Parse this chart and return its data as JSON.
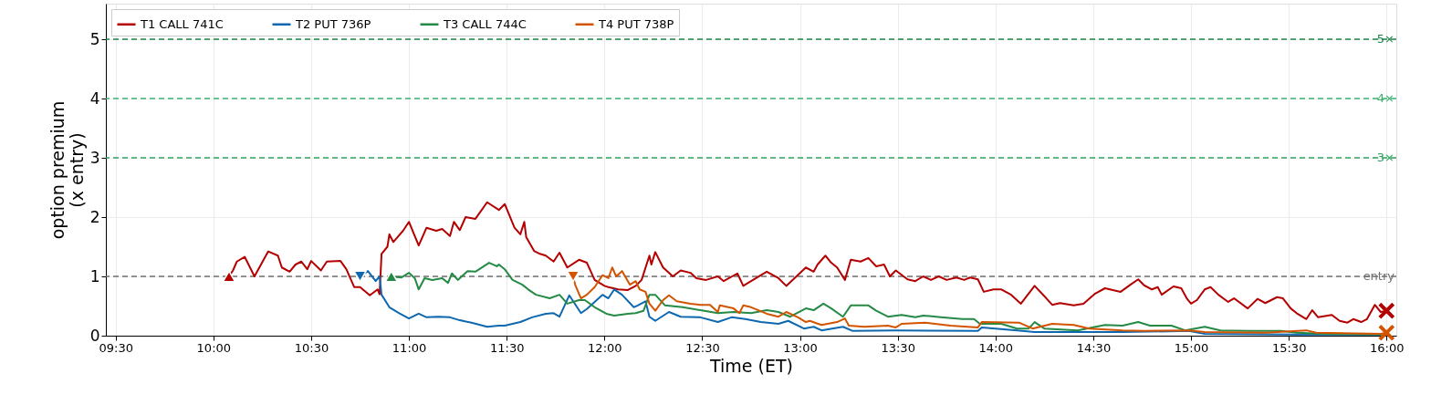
{
  "chart_data": {
    "type": "line",
    "xlabel": "Time (ET)",
    "ylabel": "option premium\n(x entry)",
    "xlim": [
      9.45,
      16.05
    ],
    "ylim": [
      0,
      5.6
    ],
    "xticks": [
      {
        "value": 9.5,
        "label": "09:30"
      },
      {
        "value": 10,
        "label": "10:00"
      },
      {
        "value": 10.5,
        "label": "10:30"
      },
      {
        "value": 11,
        "label": "11:00"
      },
      {
        "value": 11.5,
        "label": "11:30"
      },
      {
        "value": 12,
        "label": "12:00"
      },
      {
        "value": 12.5,
        "label": "12:30"
      },
      {
        "value": 13,
        "label": "13:00"
      },
      {
        "value": 13.5,
        "label": "13:30"
      },
      {
        "value": 14,
        "label": "14:00"
      },
      {
        "value": 14.5,
        "label": "14:30"
      },
      {
        "value": 15,
        "label": "15:00"
      },
      {
        "value": 15.5,
        "label": "15:30"
      },
      {
        "value": 16,
        "label": "16:00"
      }
    ],
    "yticks": [
      0,
      1,
      2,
      3,
      4,
      5
    ],
    "grid": true,
    "legend": "top left",
    "line_style": "solid",
    "marker": "none",
    "ref_lines": [
      {
        "axis": "y",
        "value": 1,
        "label": "entry",
        "color": "#707070",
        "line_style": "dashed"
      },
      {
        "axis": "y",
        "value": 3,
        "label": "3×",
        "color": "#2ca25f",
        "line_style": "dashed"
      },
      {
        "axis": "y",
        "value": 4,
        "label": "4×",
        "color": "#3cb371",
        "line_style": "dashed"
      },
      {
        "axis": "y",
        "value": 5,
        "label": "5×",
        "color": "#1e8449",
        "line_style": "dashed"
      }
    ],
    "series": [
      {
        "name": "T1 CALL 741C",
        "color": "#b40000",
        "x": [
          10.08,
          10.1,
          10.12,
          10.16,
          10.21,
          10.28,
          10.33,
          10.35,
          10.39,
          10.42,
          10.45,
          10.48,
          10.5,
          10.55,
          10.58,
          10.65,
          10.68,
          10.72,
          10.75,
          10.8,
          10.84,
          10.85,
          10.86,
          10.89,
          10.9,
          10.92,
          10.97,
          11.0,
          11.05,
          11.09,
          11.14,
          11.17,
          11.21,
          11.23,
          11.26,
          11.29,
          11.34,
          11.4,
          11.46,
          11.49,
          11.54,
          11.57,
          11.59,
          11.6,
          11.64,
          11.67,
          11.7,
          11.74,
          11.77,
          11.81,
          11.87,
          11.91,
          11.95,
          12.0,
          12.02,
          12.07,
          12.12,
          12.16,
          12.19,
          12.23,
          12.24,
          12.26,
          12.3,
          12.35,
          12.39,
          12.44,
          12.47,
          12.52,
          12.58,
          12.61,
          12.68,
          12.71,
          12.75,
          12.83,
          12.89,
          12.93,
          13.03,
          13.07,
          13.09,
          13.13,
          13.16,
          13.19,
          13.23,
          13.26,
          13.31,
          13.35,
          13.39,
          13.43,
          13.46,
          13.49,
          13.55,
          13.59,
          13.63,
          13.67,
          13.71,
          13.75,
          13.8,
          13.84,
          13.87,
          13.91,
          13.94,
          13.99,
          14.03,
          14.08,
          14.13,
          14.2,
          14.26,
          14.29,
          14.33,
          14.4,
          14.45,
          14.51,
          14.56,
          14.64,
          14.69,
          14.73,
          14.76,
          14.8,
          14.83,
          14.85,
          14.91,
          14.95,
          14.98,
          15.0,
          15.03,
          15.07,
          15.1,
          15.14,
          15.19,
          15.22,
          15.29,
          15.34,
          15.38,
          15.44,
          15.47,
          15.51,
          15.54,
          15.59,
          15.62,
          15.65,
          15.72,
          15.76,
          15.8,
          15.83,
          15.87,
          15.9,
          15.94,
          15.97,
          16.0
        ],
        "values": [
          1.0,
          1.1,
          1.25,
          1.33,
          1.0,
          1.42,
          1.35,
          1.15,
          1.08,
          1.2,
          1.25,
          1.12,
          1.26,
          1.1,
          1.25,
          1.26,
          1.12,
          0.82,
          0.82,
          0.68,
          0.78,
          0.7,
          1.38,
          1.5,
          1.71,
          1.58,
          1.77,
          1.92,
          1.52,
          1.82,
          1.77,
          1.8,
          1.68,
          1.92,
          1.78,
          2.0,
          1.97,
          2.25,
          2.12,
          2.22,
          1.82,
          1.71,
          1.92,
          1.66,
          1.43,
          1.38,
          1.35,
          1.25,
          1.4,
          1.15,
          1.28,
          1.23,
          0.94,
          0.84,
          0.82,
          0.78,
          0.77,
          0.84,
          0.94,
          1.35,
          1.2,
          1.41,
          1.15,
          1.0,
          1.1,
          1.06,
          0.97,
          0.94,
          1.0,
          0.92,
          1.05,
          0.84,
          0.92,
          1.08,
          0.97,
          0.84,
          1.15,
          1.08,
          1.2,
          1.35,
          1.23,
          1.15,
          0.94,
          1.28,
          1.25,
          1.31,
          1.17,
          1.2,
          1.0,
          1.1,
          0.95,
          0.92,
          1.0,
          0.94,
          1.0,
          0.94,
          0.98,
          0.94,
          0.98,
          0.95,
          0.74,
          0.78,
          0.78,
          0.69,
          0.54,
          0.84,
          0.63,
          0.52,
          0.55,
          0.51,
          0.54,
          0.71,
          0.8,
          0.74,
          0.86,
          0.95,
          0.85,
          0.78,
          0.82,
          0.69,
          0.83,
          0.8,
          0.62,
          0.54,
          0.6,
          0.78,
          0.82,
          0.69,
          0.57,
          0.63,
          0.46,
          0.62,
          0.55,
          0.65,
          0.63,
          0.46,
          0.38,
          0.28,
          0.43,
          0.31,
          0.35,
          0.25,
          0.22,
          0.28,
          0.23,
          0.28,
          0.52,
          0.4,
          0.42
        ]
      },
      {
        "name": "T2 PUT 736P",
        "color": "#0e68b0",
        "x": [
          10.75,
          10.79,
          10.83,
          10.85,
          10.86,
          10.9,
          10.95,
          11.0,
          11.05,
          11.09,
          11.15,
          11.21,
          11.26,
          11.32,
          11.4,
          11.46,
          11.49,
          11.57,
          11.63,
          11.7,
          11.74,
          11.77,
          11.82,
          11.88,
          11.91,
          11.99,
          12.02,
          12.05,
          12.09,
          12.15,
          12.17,
          12.21,
          12.23,
          12.26,
          12.33,
          12.39,
          12.49,
          12.58,
          12.65,
          12.72,
          12.8,
          12.89,
          12.94,
          13.02,
          13.07,
          13.11,
          13.22,
          13.27,
          13.49,
          13.91,
          13.93,
          14.11,
          14.2,
          14.65,
          14.99,
          15.07,
          15.54,
          16.0
        ],
        "values": [
          1.0,
          1.09,
          0.92,
          1.0,
          0.69,
          0.48,
          0.38,
          0.29,
          0.37,
          0.31,
          0.32,
          0.31,
          0.26,
          0.22,
          0.15,
          0.17,
          0.17,
          0.23,
          0.31,
          0.37,
          0.38,
          0.32,
          0.68,
          0.38,
          0.45,
          0.69,
          0.63,
          0.78,
          0.69,
          0.48,
          0.51,
          0.58,
          0.32,
          0.25,
          0.4,
          0.32,
          0.31,
          0.23,
          0.31,
          0.28,
          0.23,
          0.2,
          0.25,
          0.12,
          0.15,
          0.09,
          0.15,
          0.08,
          0.09,
          0.08,
          0.14,
          0.09,
          0.06,
          0.06,
          0.08,
          0.03,
          0.02,
          0.02
        ]
      },
      {
        "name": "T3 CALL 744C",
        "color": "#258a45",
        "x": [
          10.91,
          10.96,
          11.0,
          11.03,
          11.05,
          11.08,
          11.12,
          11.17,
          11.2,
          11.22,
          11.25,
          11.3,
          11.34,
          11.41,
          11.45,
          11.46,
          11.49,
          11.53,
          11.58,
          11.61,
          11.65,
          11.72,
          11.77,
          11.81,
          11.87,
          11.9,
          11.95,
          12.01,
          12.05,
          12.12,
          12.16,
          12.2,
          12.23,
          12.26,
          12.31,
          12.4,
          12.49,
          12.58,
          12.66,
          12.75,
          12.83,
          12.89,
          12.95,
          13.03,
          13.07,
          13.12,
          13.16,
          13.22,
          13.26,
          13.35,
          13.39,
          13.45,
          13.52,
          13.59,
          13.63,
          13.72,
          13.83,
          13.89,
          13.92,
          14.03,
          14.11,
          14.17,
          14.2,
          14.25,
          14.42,
          14.56,
          14.65,
          14.73,
          14.79,
          14.9,
          14.97,
          15.07,
          15.15,
          15.3,
          15.46,
          15.54,
          15.69,
          16.0
        ],
        "values": [
          1.0,
          0.98,
          1.06,
          0.97,
          0.78,
          0.97,
          0.94,
          0.97,
          0.89,
          1.05,
          0.94,
          1.09,
          1.08,
          1.23,
          1.17,
          1.2,
          1.12,
          0.94,
          0.86,
          0.78,
          0.69,
          0.63,
          0.69,
          0.54,
          0.6,
          0.6,
          0.48,
          0.37,
          0.34,
          0.37,
          0.38,
          0.42,
          0.69,
          0.69,
          0.51,
          0.48,
          0.43,
          0.38,
          0.4,
          0.38,
          0.43,
          0.4,
          0.32,
          0.46,
          0.43,
          0.54,
          0.46,
          0.32,
          0.51,
          0.51,
          0.42,
          0.32,
          0.35,
          0.31,
          0.34,
          0.31,
          0.28,
          0.28,
          0.2,
          0.2,
          0.12,
          0.12,
          0.23,
          0.12,
          0.09,
          0.18,
          0.17,
          0.23,
          0.17,
          0.17,
          0.09,
          0.15,
          0.09,
          0.08,
          0.08,
          0.05,
          0.03,
          0.02
        ]
      },
      {
        "name": "T4 PUT 738P",
        "color": "#d35400",
        "x": [
          11.84,
          11.85,
          11.88,
          11.91,
          11.95,
          11.99,
          12.02,
          12.04,
          12.06,
          12.09,
          12.13,
          12.16,
          12.18,
          12.21,
          12.23,
          12.26,
          12.3,
          12.33,
          12.37,
          12.44,
          12.49,
          12.54,
          12.58,
          12.59,
          12.66,
          12.69,
          12.71,
          12.75,
          12.83,
          12.89,
          12.93,
          12.99,
          13.03,
          13.05,
          13.11,
          13.19,
          13.23,
          13.25,
          13.33,
          13.45,
          13.49,
          13.52,
          13.64,
          13.77,
          13.91,
          13.93,
          14.12,
          14.19,
          14.29,
          14.4,
          14.48,
          14.65,
          14.76,
          14.99,
          15.07,
          15.38,
          15.59,
          15.64,
          15.97,
          16.0
        ],
        "values": [
          1.0,
          0.86,
          0.63,
          0.69,
          0.82,
          1.02,
          0.97,
          1.15,
          1.0,
          1.09,
          0.86,
          0.92,
          0.78,
          0.74,
          0.54,
          0.42,
          0.6,
          0.68,
          0.58,
          0.54,
          0.52,
          0.52,
          0.4,
          0.51,
          0.46,
          0.38,
          0.51,
          0.48,
          0.37,
          0.32,
          0.4,
          0.31,
          0.23,
          0.25,
          0.18,
          0.23,
          0.29,
          0.17,
          0.15,
          0.17,
          0.14,
          0.2,
          0.22,
          0.17,
          0.14,
          0.23,
          0.22,
          0.12,
          0.2,
          0.18,
          0.12,
          0.09,
          0.08,
          0.09,
          0.06,
          0.05,
          0.09,
          0.05,
          0.03,
          0.05
        ]
      },
      {
        "type": "scatter",
        "marker": "triangle",
        "color": "#b40000",
        "x": [
          10.08
        ],
        "values": [
          1.0
        ]
      },
      {
        "type": "scatter",
        "marker": "triangle-down",
        "color": "#0e68b0",
        "x": [
          10.75
        ],
        "values": [
          1.0
        ]
      },
      {
        "type": "scatter",
        "marker": "triangle",
        "color": "#258a45",
        "x": [
          10.91
        ],
        "values": [
          1.0
        ]
      },
      {
        "type": "scatter",
        "marker": "triangle-down",
        "color": "#d35400",
        "x": [
          11.84
        ],
        "values": [
          1.0
        ]
      },
      {
        "type": "scatter",
        "marker": "cross",
        "color": "#b40000",
        "x": [
          16.0
        ],
        "values": [
          0.42
        ]
      },
      {
        "type": "scatter",
        "marker": "cross",
        "color": "#d35400",
        "x": [
          16.0
        ],
        "values": [
          0.05
        ]
      }
    ]
  }
}
